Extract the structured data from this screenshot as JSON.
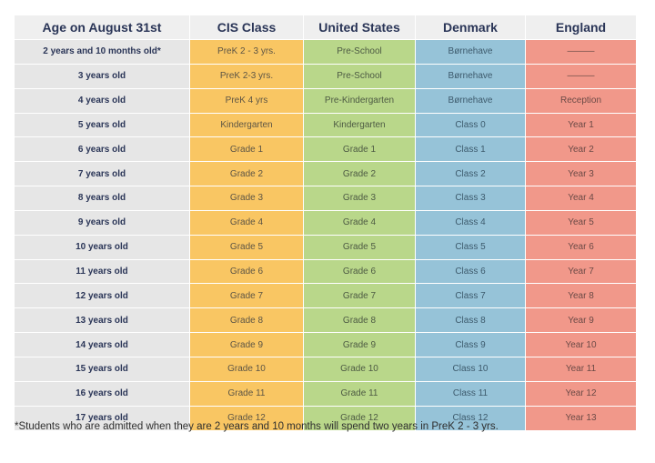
{
  "headers": {
    "age": "Age on August 31st",
    "cis": "CIS Class",
    "us": "United States",
    "dk": "Denmark",
    "en": "England"
  },
  "rows": [
    {
      "age": "2 years and 10 months old*",
      "cis": "PreK 2 - 3 yrs.",
      "us": "Pre-School",
      "dk": "Børnehave",
      "en": "———"
    },
    {
      "age": "3 years old",
      "cis": "PreK 2-3 yrs.",
      "us": "Pre-School",
      "dk": "Børnehave",
      "en": "———"
    },
    {
      "age": "4 years old",
      "cis": "PreK 4 yrs",
      "us": "Pre-Kindergarten",
      "dk": "Børnehave",
      "en": "Reception"
    },
    {
      "age": "5 years old",
      "cis": "Kindergarten",
      "us": "Kindergarten",
      "dk": "Class 0",
      "en": "Year 1"
    },
    {
      "age": "6 years old",
      "cis": "Grade 1",
      "us": "Grade 1",
      "dk": "Class 1",
      "en": "Year 2"
    },
    {
      "age": "7 years old",
      "cis": "Grade 2",
      "us": "Grade 2",
      "dk": "Class 2",
      "en": "Year 3"
    },
    {
      "age": "8 years old",
      "cis": "Grade 3",
      "us": "Grade 3",
      "dk": "Class 3",
      "en": "Year 4"
    },
    {
      "age": "9 years old",
      "cis": "Grade 4",
      "us": "Grade 4",
      "dk": "Class 4",
      "en": "Year 5"
    },
    {
      "age": "10 years old",
      "cis": "Grade 5",
      "us": "Grade 5",
      "dk": "Class 5",
      "en": "Year 6"
    },
    {
      "age": "11 years old",
      "cis": "Grade 6",
      "us": "Grade 6",
      "dk": "Class 6",
      "en": "Year 7"
    },
    {
      "age": "12 years old",
      "cis": "Grade 7",
      "us": "Grade 7",
      "dk": "Class 7",
      "en": "Year 8"
    },
    {
      "age": "13 years old",
      "cis": "Grade 8",
      "us": "Grade 8",
      "dk": "Class 8",
      "en": "Year 9"
    },
    {
      "age": "14 years old",
      "cis": "Grade 9",
      "us": "Grade 9",
      "dk": "Class 9",
      "en": "Year 10"
    },
    {
      "age": "15 years old",
      "cis": "Grade 10",
      "us": "Grade 10",
      "dk": "Class 10",
      "en": "Year 11"
    },
    {
      "age": "16 years old",
      "cis": "Grade 11",
      "us": "Grade 11",
      "dk": "Class 11",
      "en": "Year 12"
    },
    {
      "age": "17 years old",
      "cis": "Grade 12",
      "us": "Grade 12",
      "dk": "Class 12",
      "en": "Year 13"
    }
  ],
  "footnote": "*Students who are admitted when they are 2 years and 10 months will spend two years in PreK 2 - 3 yrs.",
  "colors": {
    "age_column": "#e6e6e6",
    "cis_column": "#f9c663",
    "us_column": "#b9d78a",
    "dk_column": "#96c3d8",
    "en_column": "#f1988a",
    "header_text": "#2a3557"
  }
}
